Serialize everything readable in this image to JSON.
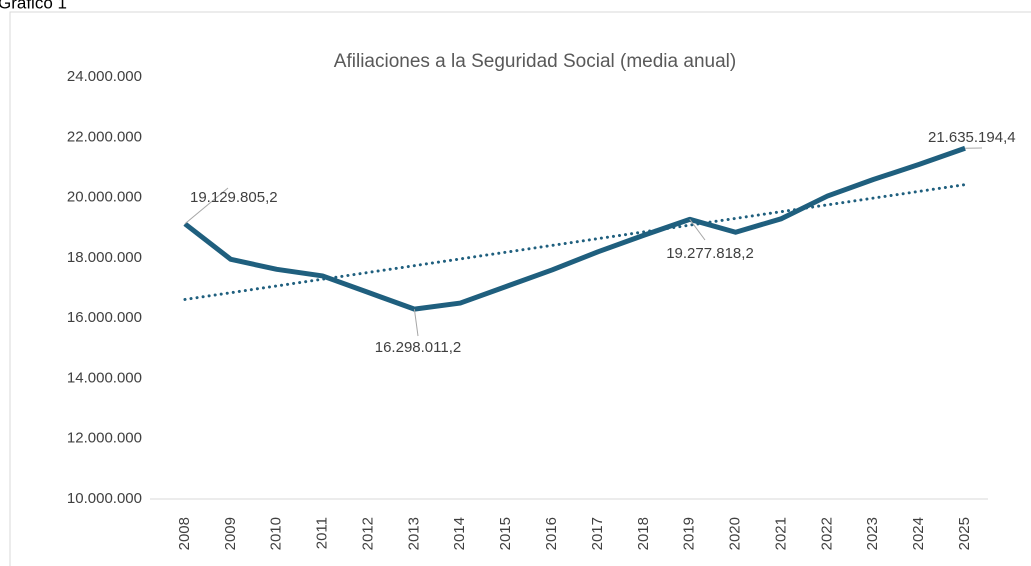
{
  "caption": "Gráfico 1",
  "chart_data": {
    "type": "line",
    "title": "Afiliaciones a la Seguridad Social (media anual)",
    "categories": [
      "2008",
      "2009",
      "2010",
      "2011",
      "2012",
      "2013",
      "2014",
      "2015",
      "2016",
      "2017",
      "2018",
      "2019",
      "2020",
      "2021",
      "2022",
      "2023",
      "2024",
      "2025"
    ],
    "values": [
      19129805.2,
      17950000,
      17620000,
      17400000,
      16850000,
      16298011.2,
      16500000,
      17050000,
      17600000,
      18200000,
      18750000,
      19277818.2,
      18850000,
      19300000,
      20050000,
      20600000,
      21100000,
      21635194.4
    ],
    "value_labels": [
      "19.129.805,2",
      null,
      null,
      null,
      null,
      "16.298.011,2",
      null,
      null,
      null,
      null,
      null,
      "19.277.818,2",
      null,
      null,
      null,
      null,
      null,
      "21.635.194,4"
    ],
    "color": "#1f5f7e",
    "trendline": {
      "values": [
        16620000,
        20430000
      ],
      "color": "#1f5f7e",
      "style": "dotted"
    },
    "ylim": [
      10000000,
      24000000
    ],
    "yticks": [
      {
        "value": 10000000,
        "label": "10.000.000"
      },
      {
        "value": 12000000,
        "label": "12.000.000"
      },
      {
        "value": 14000000,
        "label": "14.000.000"
      },
      {
        "value": 16000000,
        "label": "16.000.000"
      },
      {
        "value": 18000000,
        "label": "18.000.000"
      },
      {
        "value": 20000000,
        "label": "20.000.000"
      },
      {
        "value": 22000000,
        "label": "22.000.000"
      },
      {
        "value": 24000000,
        "label": "24.000.000"
      }
    ],
    "grid": false
  }
}
